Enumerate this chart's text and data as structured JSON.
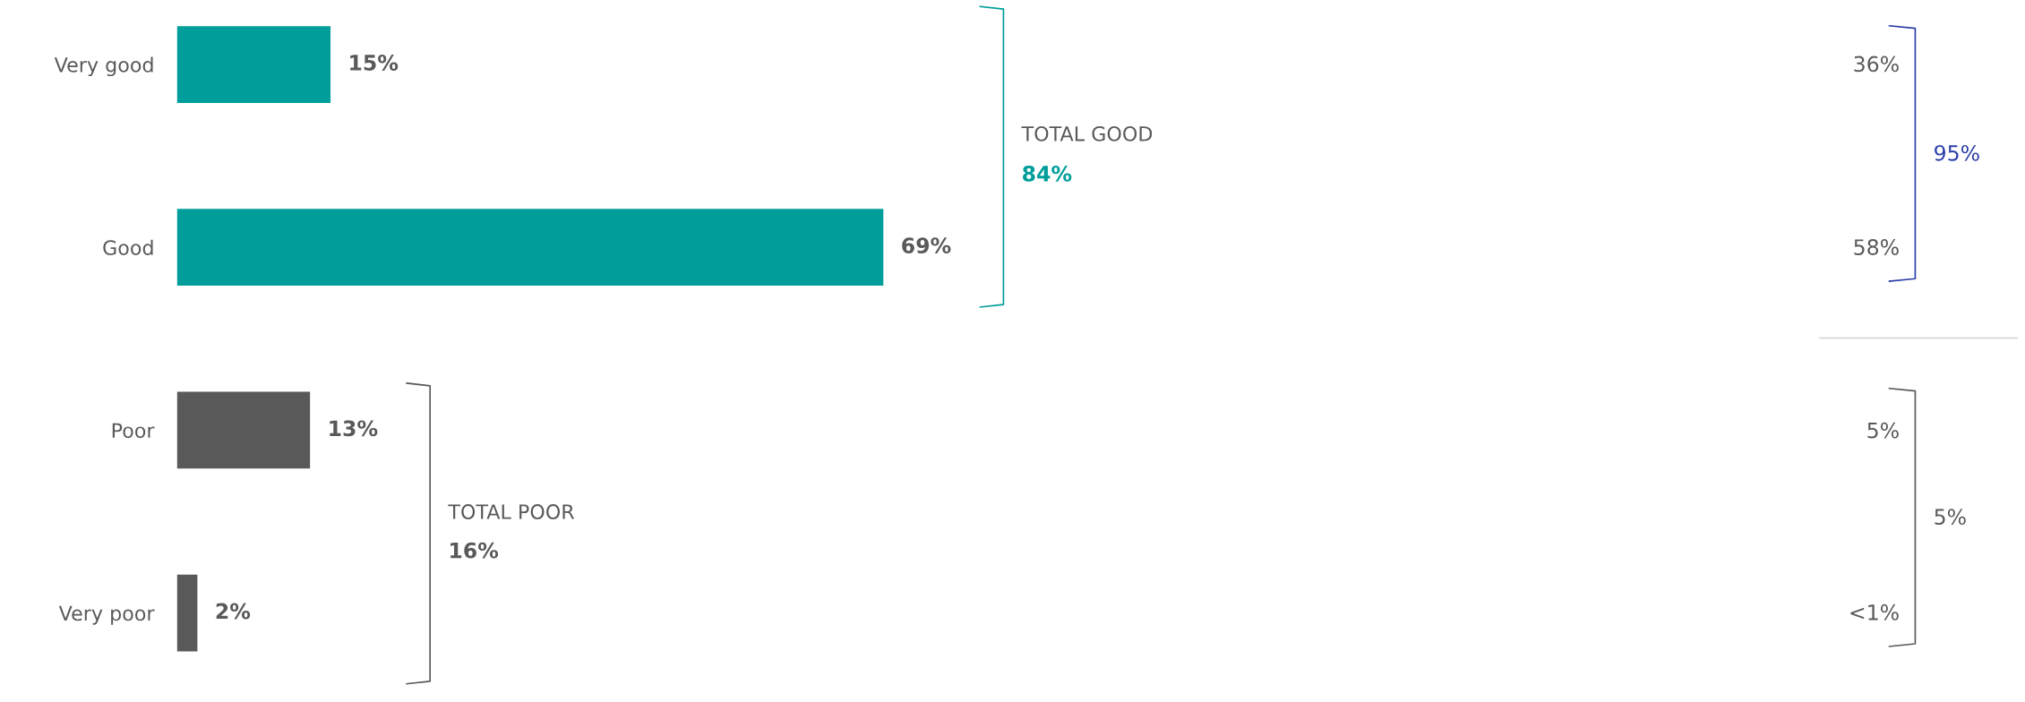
{
  "chart_data": {
    "type": "bar",
    "orientation": "horizontal",
    "categories": [
      "Very good",
      "Good",
      "Poor",
      "Very poor"
    ],
    "values": [
      15,
      69,
      13,
      2
    ],
    "colors": [
      "#009e9a",
      "#009e9a",
      "#595959",
      "#595959"
    ],
    "value_labels": [
      "15%",
      "69%",
      "13%",
      "2%"
    ],
    "annotations": [
      "TOTAL GOOD",
      "84%",
      "TOTAL POOR",
      "16%",
      "36%",
      "58%",
      "95%",
      "5%",
      "<1%",
      "5%"
    ],
    "grid": false,
    "legend": false
  }
}
